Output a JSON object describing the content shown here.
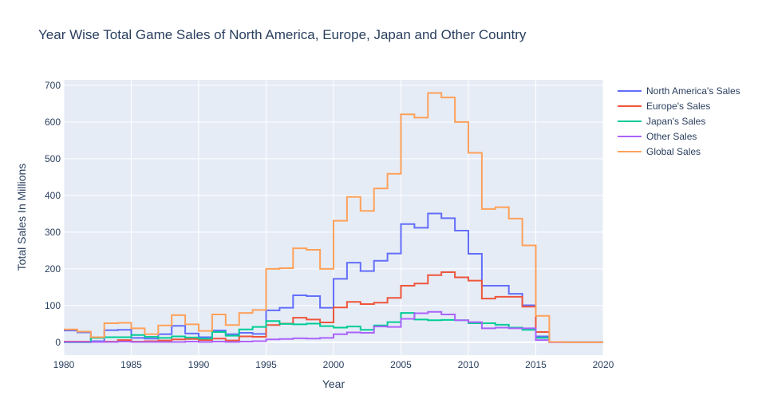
{
  "chart_data": {
    "type": "line",
    "line_shape": "step",
    "title": "Year Wise Total Game Sales of North America, Europe, Japan and Other Country",
    "xlabel": "Year",
    "ylabel": "Total Sales In Millions",
    "xlim": [
      1980,
      2020
    ],
    "ylim": [
      -35,
      715
    ],
    "xticks": [
      1980,
      1985,
      1990,
      1995,
      2000,
      2005,
      2010,
      2015,
      2020
    ],
    "yticks": [
      0,
      100,
      200,
      300,
      400,
      500,
      600,
      700
    ],
    "grid": true,
    "legend_position": "right",
    "x": [
      1980,
      1981,
      1982,
      1983,
      1984,
      1985,
      1986,
      1987,
      1988,
      1989,
      1990,
      1991,
      1992,
      1993,
      1994,
      1995,
      1996,
      1997,
      1998,
      1999,
      2000,
      2001,
      2002,
      2003,
      2004,
      2005,
      2006,
      2007,
      2008,
      2009,
      2010,
      2011,
      2012,
      2013,
      2014,
      2015,
      2016,
      2017,
      2020
    ],
    "series": [
      {
        "name": "North America's Sales",
        "color": "#636efa",
        "values": [
          32,
          27,
          3,
          33,
          34,
          12,
          10,
          22,
          45,
          24,
          14,
          32,
          22,
          26,
          23,
          87,
          94,
          128,
          126,
          94,
          173,
          217,
          194,
          222,
          242,
          322,
          312,
          351,
          338,
          304,
          241,
          154,
          154,
          132,
          101,
          16,
          1,
          0,
          0
        ]
      },
      {
        "name": "Europe's Sales",
        "color": "#ef553b",
        "values": [
          2,
          2,
          1,
          2,
          6,
          2,
          3,
          5,
          8,
          9,
          6,
          10,
          5,
          16,
          15,
          47,
          51,
          67,
          62,
          54,
          95,
          110,
          104,
          108,
          121,
          154,
          160,
          183,
          191,
          177,
          168,
          119,
          124,
          124,
          97,
          28,
          1,
          0,
          0
        ]
      },
      {
        "name": "Japan's Sales",
        "color": "#00cc96",
        "values": [
          0,
          0,
          12,
          14,
          14,
          20,
          15,
          12,
          16,
          13,
          10,
          28,
          18,
          35,
          42,
          58,
          50,
          49,
          51,
          44,
          40,
          43,
          34,
          46,
          55,
          80,
          62,
          60,
          61,
          60,
          52,
          52,
          48,
          40,
          34,
          12,
          1,
          0,
          0
        ]
      },
      {
        "name": "Other Sales",
        "color": "#ab63fa",
        "values": [
          1,
          1,
          1,
          1,
          2,
          1,
          1,
          1,
          1,
          2,
          1,
          2,
          1,
          2,
          3,
          8,
          9,
          11,
          10,
          12,
          22,
          27,
          26,
          43,
          42,
          64,
          79,
          83,
          76,
          60,
          55,
          38,
          40,
          38,
          38,
          6,
          0,
          0,
          0
        ]
      },
      {
        "name": "Global Sales",
        "color": "#ffa15a",
        "values": [
          35,
          29,
          14,
          52,
          53,
          38,
          22,
          46,
          74,
          49,
          31,
          76,
          47,
          80,
          88,
          200,
          202,
          256,
          252,
          200,
          331,
          396,
          358,
          419,
          459,
          621,
          612,
          679,
          667,
          600,
          516,
          363,
          368,
          337,
          264,
          72,
          1,
          0,
          0
        ]
      }
    ]
  }
}
